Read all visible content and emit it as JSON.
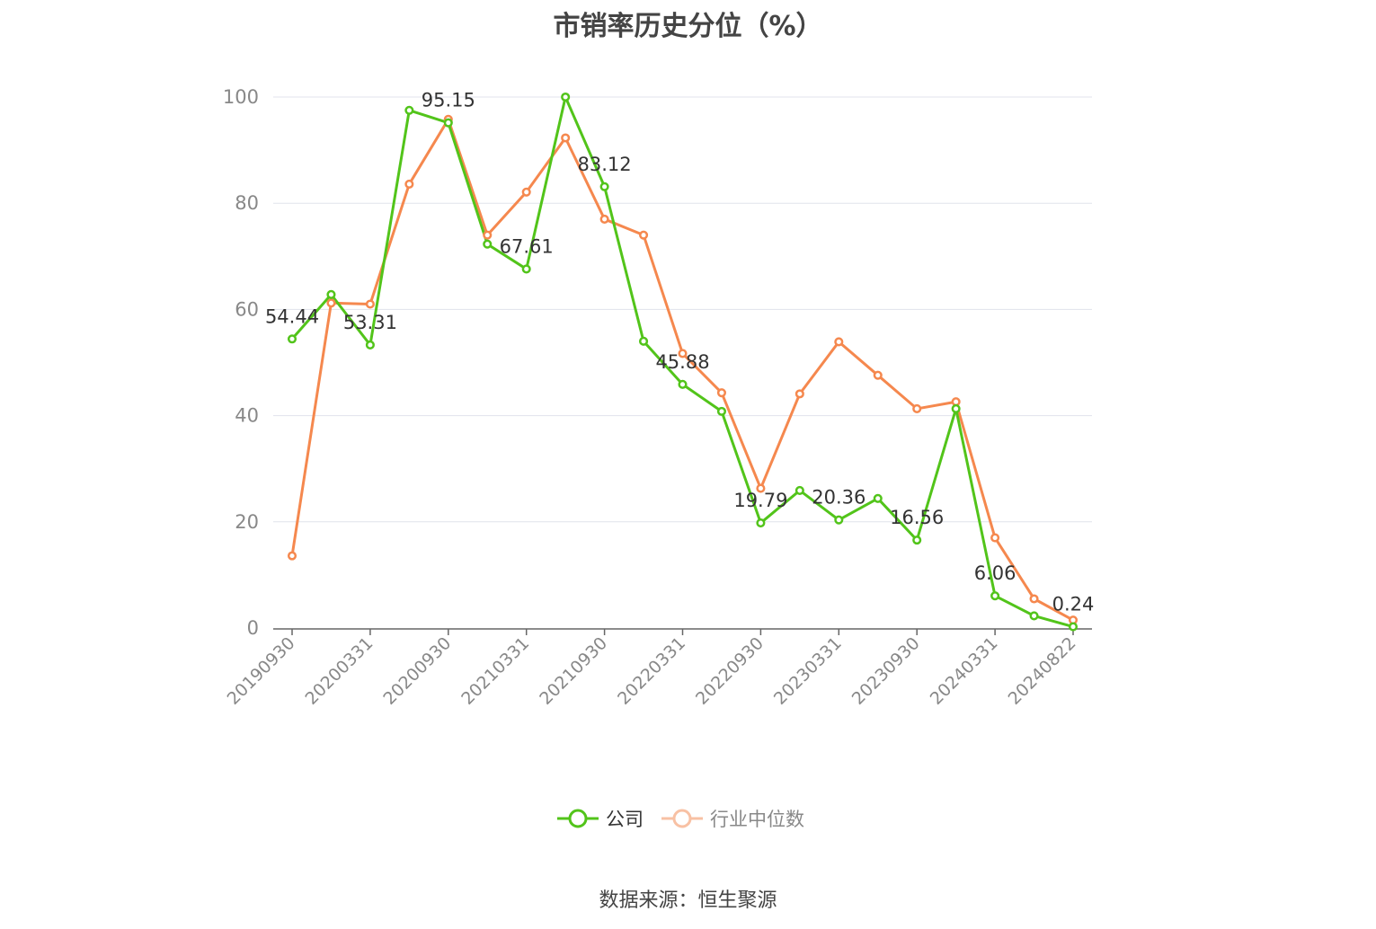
{
  "title": "市销率历史分位（%）",
  "source": "数据来源：恒生聚源",
  "colors": {
    "company": "#52c41a",
    "industry": "#f5884e",
    "grid": "#e0e3ec",
    "axis": "#666666",
    "tick_text": "#888888",
    "label_text": "#333333"
  },
  "chart_data": {
    "type": "line",
    "ylim": [
      0,
      100
    ],
    "yticks": [
      0,
      20,
      40,
      60,
      80,
      100
    ],
    "x_tick_labels": [
      "20190930",
      "20200331",
      "20200930",
      "20210331",
      "20210930",
      "20220331",
      "20220930",
      "20230331",
      "20230930",
      "20240331",
      "20240822"
    ],
    "x_tick_positions": [
      0,
      2,
      4,
      6,
      8,
      10,
      12,
      14,
      16,
      18,
      20
    ],
    "point_count": 21,
    "grid": true,
    "legend_position": "bottom",
    "series": [
      {
        "name": "公司",
        "key": "company",
        "values": [
          54.44,
          62.8,
          53.31,
          97.5,
          95.15,
          72.3,
          67.61,
          100.0,
          83.12,
          54.0,
          45.88,
          40.8,
          19.79,
          25.9,
          20.36,
          24.4,
          16.56,
          41.3,
          6.06,
          2.3,
          0.24
        ]
      },
      {
        "name": "行业中位数",
        "key": "industry",
        "values": [
          13.6,
          61.2,
          61.0,
          83.6,
          95.8,
          74.0,
          82.1,
          92.3,
          77.0,
          74.0,
          51.7,
          44.3,
          26.3,
          44.1,
          53.9,
          47.6,
          41.3,
          42.6,
          17.0,
          5.5,
          1.5
        ]
      }
    ],
    "data_labels": [
      {
        "index": 0,
        "text": "54.44"
      },
      {
        "index": 2,
        "text": "53.31"
      },
      {
        "index": 4,
        "text": "95.15"
      },
      {
        "index": 6,
        "text": "67.61"
      },
      {
        "index": 8,
        "text": "83.12"
      },
      {
        "index": 10,
        "text": "45.88"
      },
      {
        "index": 12,
        "text": "19.79"
      },
      {
        "index": 14,
        "text": "20.36"
      },
      {
        "index": 16,
        "text": "16.56"
      },
      {
        "index": 18,
        "text": "6.06"
      },
      {
        "index": 20,
        "text": "0.24"
      }
    ]
  },
  "legend": [
    {
      "label": "公司",
      "key": "company"
    },
    {
      "label": "行业中位数",
      "key": "industry"
    }
  ]
}
